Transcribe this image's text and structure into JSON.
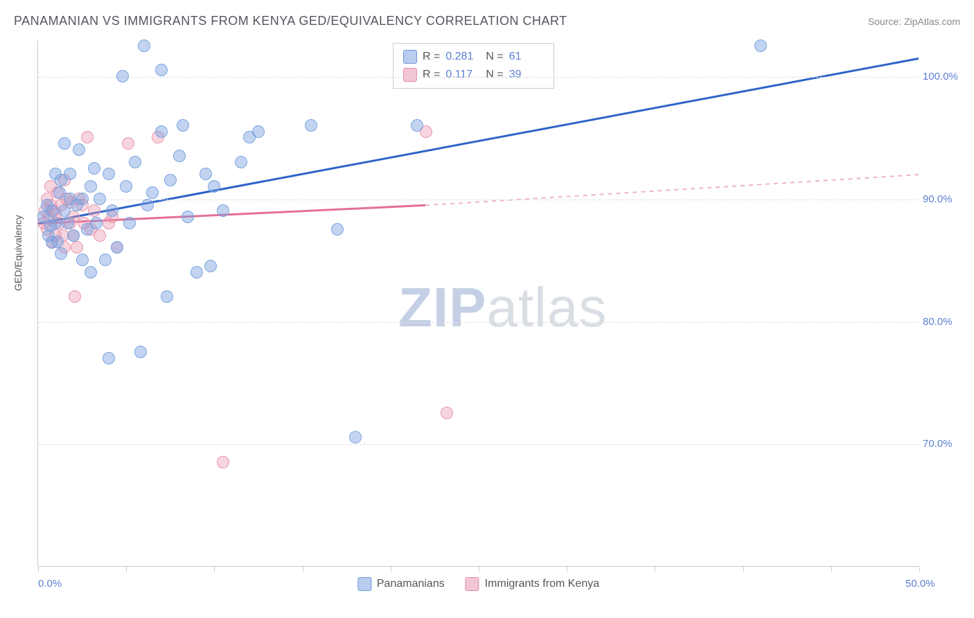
{
  "title": "PANAMANIAN VS IMMIGRANTS FROM KENYA GED/EQUIVALENCY CORRELATION CHART",
  "source": "Source: ZipAtlas.com",
  "ylabel": "GED/Equivalency",
  "watermark": {
    "bold": "ZIP",
    "rest": "atlas"
  },
  "axes": {
    "xlim": [
      0,
      50
    ],
    "ylim": [
      60,
      103
    ],
    "y_ticks": [
      70,
      80,
      90,
      100
    ],
    "y_tick_labels": [
      "70.0%",
      "80.0%",
      "90.0%",
      "100.0%"
    ],
    "x_ticks": [
      0,
      5,
      10,
      15,
      20,
      25,
      30,
      35,
      40,
      45,
      50
    ],
    "x_tick_labels": {
      "0": "0.0%",
      "50": "50.0%"
    },
    "grid_color": "#dddddd",
    "axis_color": "#cccccc"
  },
  "series": {
    "panamanians": {
      "label": "Panamanians",
      "color_fill": "rgba(120,160,225,0.45)",
      "color_stroke": "#7aa4e0",
      "swatch_fill": "#b9cdef",
      "swatch_border": "#6f95d6",
      "marker_size": 18,
      "r": 0.281,
      "n": 61,
      "trend": {
        "x1": 0,
        "y1": 88.0,
        "x2": 50,
        "y2": 101.5,
        "width": 3,
        "color": "#2c63c9",
        "dash": "none"
      },
      "points": [
        [
          0.3,
          88.5
        ],
        [
          0.5,
          89.5
        ],
        [
          0.6,
          87.0
        ],
        [
          0.7,
          87.8
        ],
        [
          0.8,
          86.4
        ],
        [
          0.8,
          89.0
        ],
        [
          1.0,
          88.0
        ],
        [
          1.0,
          92.0
        ],
        [
          1.1,
          86.5
        ],
        [
          1.2,
          90.5
        ],
        [
          1.3,
          85.5
        ],
        [
          1.3,
          91.5
        ],
        [
          1.5,
          89.0
        ],
        [
          1.5,
          94.5
        ],
        [
          1.7,
          88.0
        ],
        [
          1.8,
          90.0
        ],
        [
          1.8,
          92.0
        ],
        [
          2.0,
          87.0
        ],
        [
          2.2,
          89.5
        ],
        [
          2.3,
          94.0
        ],
        [
          2.5,
          85.0
        ],
        [
          2.5,
          90.0
        ],
        [
          2.8,
          87.5
        ],
        [
          3.0,
          91.0
        ],
        [
          3.0,
          84.0
        ],
        [
          3.2,
          92.5
        ],
        [
          3.3,
          88.0
        ],
        [
          3.5,
          90.0
        ],
        [
          3.8,
          85.0
        ],
        [
          4.0,
          92.0
        ],
        [
          4.0,
          77.0
        ],
        [
          4.2,
          89.0
        ],
        [
          4.5,
          86.0
        ],
        [
          4.8,
          100.0
        ],
        [
          5.0,
          91.0
        ],
        [
          5.2,
          88.0
        ],
        [
          5.5,
          93.0
        ],
        [
          5.8,
          77.5
        ],
        [
          6.0,
          102.5
        ],
        [
          6.2,
          89.5
        ],
        [
          6.5,
          90.5
        ],
        [
          7.0,
          95.5
        ],
        [
          7.0,
          100.5
        ],
        [
          7.3,
          82.0
        ],
        [
          7.5,
          91.5
        ],
        [
          8.0,
          93.5
        ],
        [
          8.2,
          96.0
        ],
        [
          8.5,
          88.5
        ],
        [
          9.0,
          84.0
        ],
        [
          9.5,
          92.0
        ],
        [
          9.8,
          84.5
        ],
        [
          10.0,
          91.0
        ],
        [
          10.5,
          89.0
        ],
        [
          11.5,
          93.0
        ],
        [
          12.0,
          95.0
        ],
        [
          12.5,
          95.5
        ],
        [
          15.5,
          96.0
        ],
        [
          17.0,
          87.5
        ],
        [
          18.0,
          70.5
        ],
        [
          21.5,
          96.0
        ],
        [
          41.0,
          102.5
        ]
      ]
    },
    "kenya": {
      "label": "Immigrants from Kenya",
      "color_fill": "rgba(235,150,175,0.40)",
      "color_stroke": "#e996af",
      "swatch_fill": "#f4c6d3",
      "swatch_border": "#e28ba6",
      "marker_size": 18,
      "r": 0.117,
      "n": 39,
      "trend_solid": {
        "x1": 0,
        "y1": 88.0,
        "x2": 22,
        "y2": 89.5,
        "width": 3,
        "color": "#e46f95"
      },
      "trend_dash": {
        "x1": 22,
        "y1": 89.5,
        "x2": 50,
        "y2": 92.0,
        "width": 2,
        "color": "#f0b3c6"
      },
      "points": [
        [
          0.3,
          88.0
        ],
        [
          0.4,
          89.0
        ],
        [
          0.5,
          87.5
        ],
        [
          0.5,
          90.0
        ],
        [
          0.6,
          88.5
        ],
        [
          0.7,
          89.5
        ],
        [
          0.7,
          91.0
        ],
        [
          0.8,
          86.5
        ],
        [
          0.9,
          89.0
        ],
        [
          1.0,
          87.0
        ],
        [
          1.0,
          88.8
        ],
        [
          1.1,
          90.5
        ],
        [
          1.2,
          88.0
        ],
        [
          1.3,
          89.5
        ],
        [
          1.4,
          87.0
        ],
        [
          1.5,
          91.5
        ],
        [
          1.5,
          86.0
        ],
        [
          1.6,
          90.0
        ],
        [
          1.8,
          88.0
        ],
        [
          1.8,
          89.7
        ],
        [
          2.0,
          87.0
        ],
        [
          2.0,
          88.5
        ],
        [
          2.1,
          82.0
        ],
        [
          2.2,
          86.0
        ],
        [
          2.3,
          90.0
        ],
        [
          2.5,
          89.5
        ],
        [
          2.6,
          88.0
        ],
        [
          2.8,
          95.0
        ],
        [
          3.0,
          87.5
        ],
        [
          3.2,
          89.0
        ],
        [
          3.5,
          87.0
        ],
        [
          4.0,
          88.0
        ],
        [
          4.2,
          88.5
        ],
        [
          4.5,
          86.0
        ],
        [
          5.1,
          94.5
        ],
        [
          6.8,
          95.0
        ],
        [
          10.5,
          68.5
        ],
        [
          22.0,
          95.5
        ],
        [
          23.2,
          72.5
        ]
      ]
    }
  },
  "stats_box": {
    "rows": [
      {
        "series": "panamanians",
        "r_lbl": "R =",
        "r_val": "0.281",
        "n_lbl": "N =",
        "n_val": "61"
      },
      {
        "series": "kenya",
        "r_lbl": "R =",
        "r_val": "0.117",
        "n_lbl": "N =",
        "n_val": "39"
      }
    ]
  },
  "legend_items": [
    {
      "series": "panamanians"
    },
    {
      "series": "kenya"
    }
  ]
}
